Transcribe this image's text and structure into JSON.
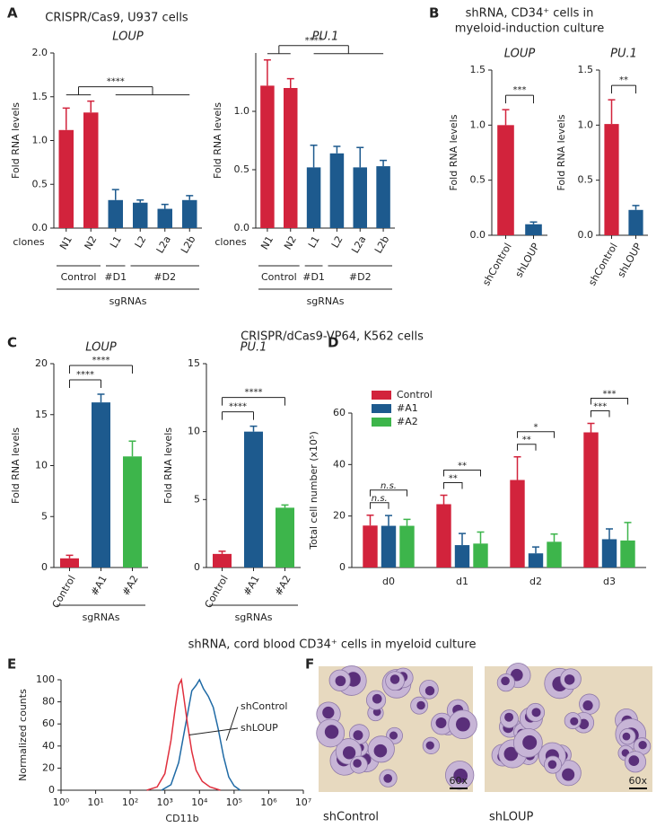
{
  "panel_labels": [
    "A",
    "B",
    "C",
    "D",
    "E",
    "F"
  ],
  "section_titles": [
    [
      "CRISPR/Cas9, U937 cells"
    ],
    [
      "shRNA, CD34⁺ cells in",
      "myeloid-induction culture"
    ],
    [
      "CRISPR/dCas9-VP64, K562 cells"
    ],
    [
      "shRNA, cord blood CD34⁺ cells in myeloid culture"
    ]
  ],
  "chart_data": [
    {
      "type": "bar",
      "title": "LOUP",
      "categories": [
        "N1",
        "N2",
        "L1",
        "L2",
        "L2a",
        "L2b"
      ],
      "values": [
        1.12,
        1.32,
        0.32,
        0.29,
        0.22,
        0.32
      ],
      "errors": [
        0.25,
        0.13,
        0.12,
        0.03,
        0.05,
        0.05
      ],
      "colors": [
        "#d2233c",
        "#d2233c",
        "#1d5a8e",
        "#1d5a8e",
        "#1d5a8e",
        "#1d5a8e"
      ],
      "xlabel": "clones",
      "ylabel": "Fold RNA levels",
      "ylim": [
        0,
        2
      ],
      "yticks": [
        {
          "value": 0,
          "label": "0.0"
        },
        0.5,
        {
          "value": 1,
          "label": "1.0"
        },
        1.5,
        {
          "value": 2,
          "label": "2.0"
        }
      ],
      "groups": [
        {
          "label": "Control",
          "start": 0,
          "end": 1
        },
        {
          "label": "#D1",
          "start": 2,
          "end": 2
        },
        {
          "label": "#D2",
          "start": 3,
          "end": 5
        }
      ],
      "group_title": "sgRNAs",
      "significance": [
        {
          "label": "****",
          "between": [
            [
              0,
              1
            ],
            [
              2,
              5
            ]
          ]
        }
      ]
    },
    {
      "type": "bar",
      "title": "PU.1",
      "categories": [
        "N1",
        "N2",
        "L1",
        "L2",
        "L2a",
        "L2b"
      ],
      "values": [
        1.22,
        1.2,
        0.52,
        0.64,
        0.52,
        0.53
      ],
      "errors": [
        0.22,
        0.08,
        0.19,
        0.06,
        0.17,
        0.05
      ],
      "colors": [
        "#d2233c",
        "#d2233c",
        "#1d5a8e",
        "#1d5a8e",
        "#1d5a8e",
        "#1d5a8e"
      ],
      "xlabel": "clones",
      "ylabel": "Fold RNA levels",
      "ylim": [
        0,
        1.5
      ],
      "yticks": [
        {
          "value": 0,
          "label": "0.0"
        },
        0.5,
        {
          "value": 1,
          "label": "1.0"
        }
      ],
      "groups": [
        {
          "label": "Control",
          "start": 0,
          "end": 1
        },
        {
          "label": "#D1",
          "start": 2,
          "end": 2
        },
        {
          "label": "#D2",
          "start": 3,
          "end": 5
        }
      ],
      "group_title": "sgRNAs",
      "significance": [
        {
          "label": "****",
          "between": [
            [
              0,
              1
            ],
            [
              2,
              5
            ]
          ]
        }
      ]
    },
    {
      "type": "bar",
      "title": "LOUP",
      "categories": [
        "shControl",
        "shLOUP"
      ],
      "values": [
        1.0,
        0.1
      ],
      "errors": [
        0.14,
        0.02
      ],
      "colors": [
        "#d2233c",
        "#1d5a8e"
      ],
      "ylabel": "Fold RNA levels",
      "ylim": [
        0,
        1.5
      ],
      "yticks": [
        {
          "value": 0,
          "label": "0.0"
        },
        0.5,
        {
          "value": 1,
          "label": "1.0"
        },
        1.5
      ],
      "significance": [
        {
          "label": "***",
          "between": [
            [
              0,
              0
            ],
            [
              1,
              1
            ]
          ]
        }
      ]
    },
    {
      "type": "bar",
      "title": "PU.1",
      "categories": [
        "shControl",
        "shLOUP"
      ],
      "values": [
        1.01,
        0.23
      ],
      "errors": [
        0.22,
        0.04
      ],
      "colors": [
        "#d2233c",
        "#1d5a8e"
      ],
      "ylabel": "Fold RNA levels",
      "ylim": [
        0,
        1.5
      ],
      "yticks": [
        {
          "value": 0,
          "label": "0.0"
        },
        0.5,
        {
          "value": 1,
          "label": "1.0"
        },
        1.5
      ],
      "significance": [
        {
          "label": "**",
          "between": [
            [
              0,
              0
            ],
            [
              1,
              1
            ]
          ]
        }
      ]
    },
    {
      "type": "bar",
      "title": "LOUP",
      "categories": [
        "Control",
        "#A1",
        "#A2"
      ],
      "values": [
        0.9,
        16.2,
        10.9
      ],
      "errors": [
        0.3,
        0.8,
        1.5
      ],
      "colors": [
        "#d2233c",
        "#1d5a8e",
        "#3db54b"
      ],
      "ylabel": "Fold RNA levels",
      "ylim": [
        0,
        20
      ],
      "yticks": [
        0,
        5,
        10,
        15,
        20
      ],
      "group_title": "sgRNAs",
      "significance": [
        {
          "label": "****",
          "between": [
            [
              0,
              0
            ],
            [
              1,
              1
            ]
          ]
        },
        {
          "label": "****",
          "between": [
            [
              0,
              0
            ],
            [
              2,
              2
            ]
          ]
        }
      ]
    },
    {
      "type": "bar",
      "title": "PU.1",
      "categories": [
        "Control",
        "#A1",
        "#A2"
      ],
      "values": [
        1.0,
        10.0,
        4.4
      ],
      "errors": [
        0.2,
        0.4,
        0.2
      ],
      "colors": [
        "#d2233c",
        "#1d5a8e",
        "#3db54b"
      ],
      "ylabel": "Fold RNA levels",
      "ylim": [
        0,
        15
      ],
      "yticks": [
        0,
        5,
        10,
        15
      ],
      "group_title": "sgRNAs",
      "significance": [
        {
          "label": "****",
          "between": [
            [
              0,
              0
            ],
            [
              1,
              1
            ]
          ]
        },
        {
          "label": "****",
          "between": [
            [
              0,
              0
            ],
            [
              2,
              2
            ]
          ]
        }
      ]
    },
    {
      "type": "bar",
      "categories": [
        "d0",
        "d1",
        "d2",
        "d3"
      ],
      "ylabel": "Total cell number (x10⁵)",
      "ylim": [
        0,
        60
      ],
      "yticks": [
        0,
        20,
        40,
        60
      ],
      "series": [
        {
          "name": "Control",
          "color": "#d2233c",
          "values": [
            16.3,
            24.6,
            34,
            52.5
          ],
          "errors": [
            4,
            3.5,
            9,
            3.5
          ]
        },
        {
          "name": "#A1",
          "color": "#1d5a8e",
          "values": [
            16.2,
            8.7,
            5.5,
            11
          ],
          "errors": [
            4,
            4.5,
            2.5,
            4
          ]
        },
        {
          "name": "#A2",
          "color": "#3db54b",
          "values": [
            16.2,
            9.3,
            10,
            10.5
          ],
          "errors": [
            2.5,
            4.5,
            3,
            7
          ]
        }
      ],
      "significance": [
        {
          "category": 0,
          "between": [
            0,
            1
          ],
          "label": "n.s."
        },
        {
          "category": 0,
          "between": [
            0,
            2
          ],
          "label": "n.s."
        },
        {
          "category": 1,
          "between": [
            0,
            1
          ],
          "label": "**"
        },
        {
          "category": 1,
          "between": [
            0,
            2
          ],
          "label": "**"
        },
        {
          "category": 2,
          "between": [
            0,
            1
          ],
          "label": "**"
        },
        {
          "category": 2,
          "between": [
            0,
            2
          ],
          "label": "*"
        },
        {
          "category": 3,
          "between": [
            0,
            1
          ],
          "label": "***"
        },
        {
          "category": 3,
          "between": [
            0,
            2
          ],
          "label": "***"
        }
      ]
    },
    {
      "type": "line",
      "xlabel": "CD11b",
      "ylabel": "Normalized counts",
      "xlog": true,
      "xlim": [
        1,
        10000000
      ],
      "xticks": [
        {
          "value": 1,
          "label": "10⁰"
        },
        {
          "value": 10,
          "label": "10¹"
        },
        {
          "value": 100,
          "label": "10²"
        },
        {
          "value": 1000,
          "label": "10³"
        },
        {
          "value": 10000,
          "label": "10⁴"
        },
        {
          "value": 100000,
          "label": "10⁵"
        },
        {
          "value": 1000000,
          "label": "10⁶"
        },
        {
          "value": 10000000,
          "label": "10⁷"
        }
      ],
      "ylim": [
        0,
        100
      ],
      "yticks": [
        0,
        20,
        40,
        60,
        80,
        100
      ],
      "series": [
        {
          "name": "shControl",
          "color": "#1f6aa5",
          "x": [
            800,
            1500,
            2500,
            4000,
            6000,
            8000,
            10000,
            13000,
            18000,
            25000,
            35000,
            50000,
            70000,
            100000,
            150000
          ],
          "values": [
            0,
            5,
            25,
            60,
            90,
            95,
            100,
            92,
            85,
            75,
            55,
            30,
            12,
            4,
            0
          ]
        },
        {
          "name": "shLOUP",
          "color": "#e0303e",
          "x": [
            300,
            600,
            1000,
            1500,
            2000,
            2500,
            3000,
            3500,
            4500,
            6000,
            8000,
            12000,
            20000,
            40000
          ],
          "values": [
            0,
            3,
            15,
            45,
            75,
            95,
            100,
            85,
            60,
            35,
            18,
            8,
            3,
            0
          ]
        }
      ]
    }
  ],
  "micrographs": [
    {
      "label": "shControl",
      "magnification": "60x"
    },
    {
      "label": "shLOUP",
      "magnification": "60x"
    }
  ]
}
